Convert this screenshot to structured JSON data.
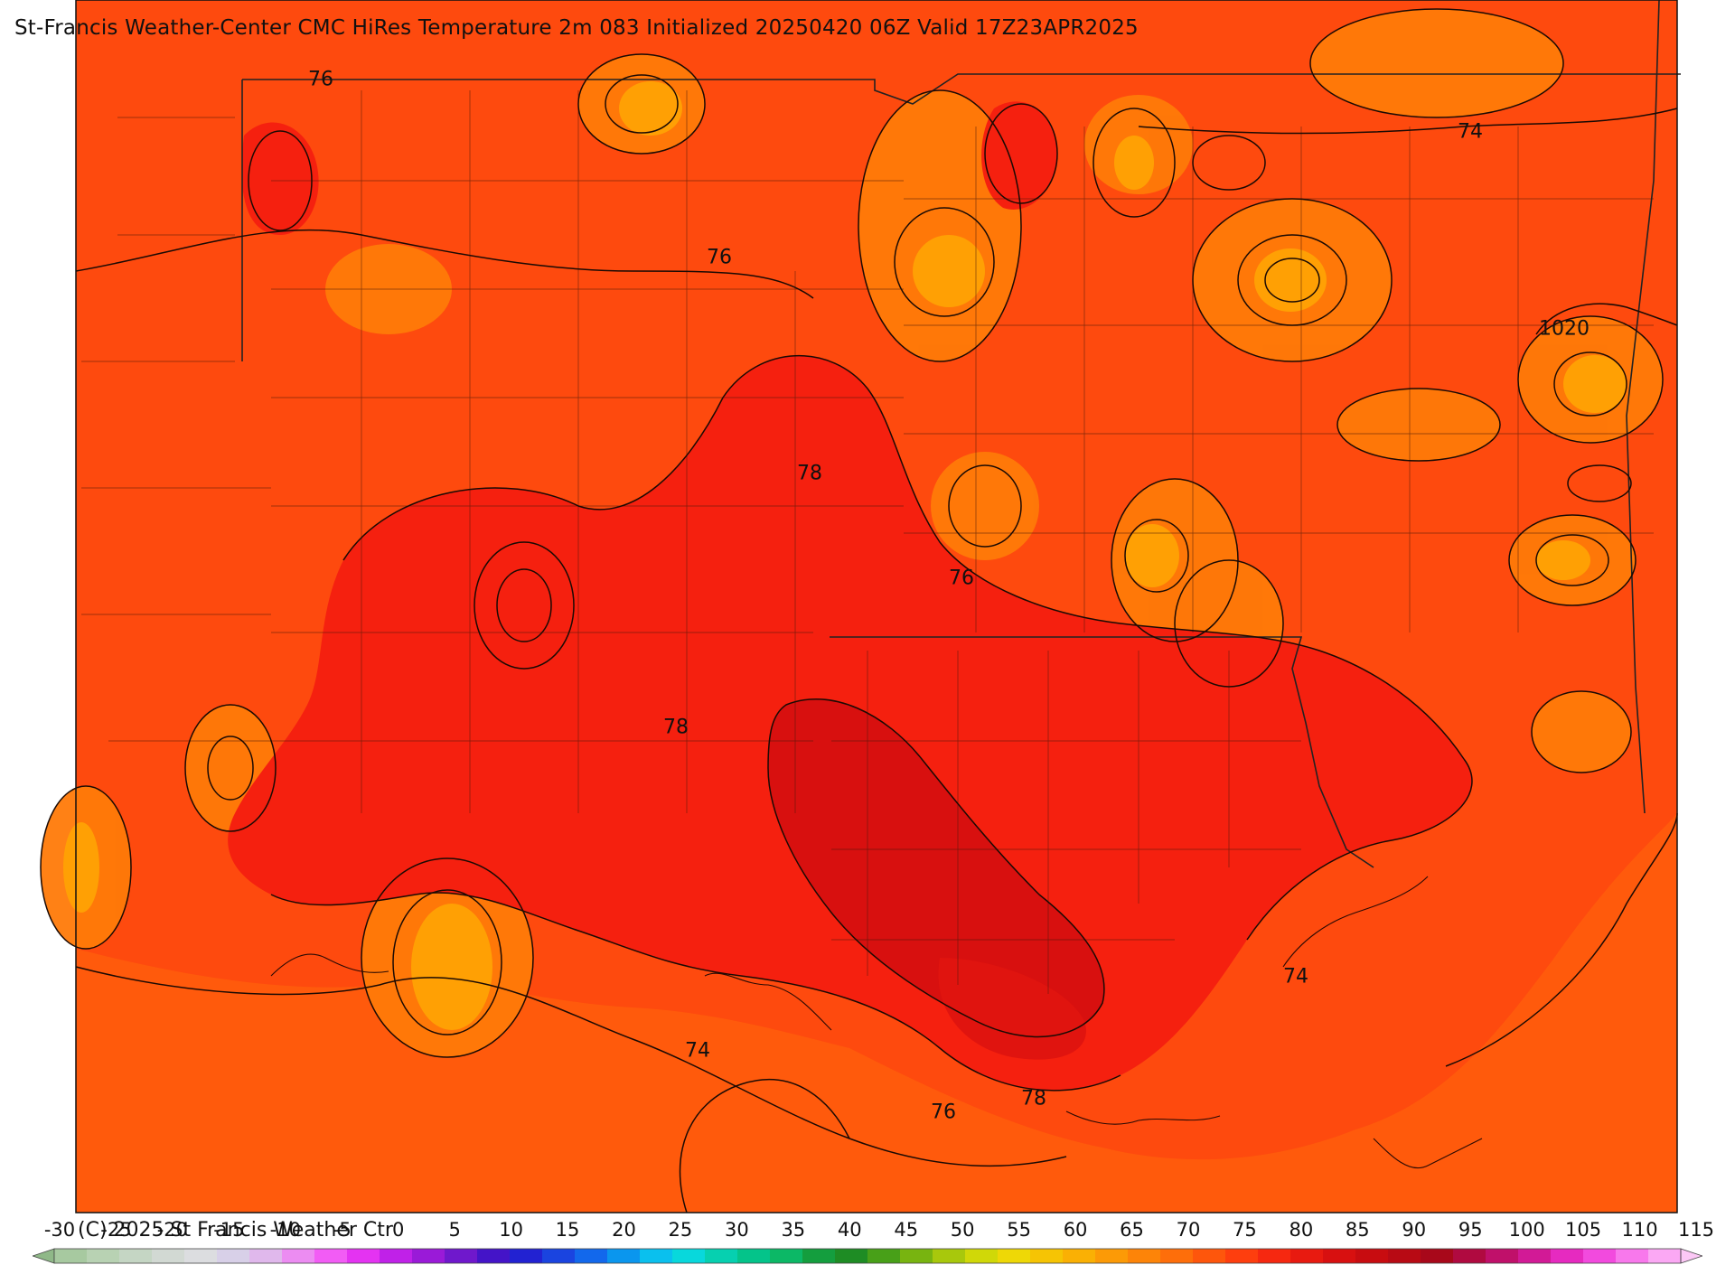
{
  "title": "St-Francis Weather-Center CMC HiRes Temperature 2m  083 Initialized 20250420 06Z Valid 17Z23APR2025",
  "copyright": "(C) 2025 St Francis Weather Ctr",
  "contour_labels": [
    {
      "text": "76"
    },
    {
      "text": "76"
    },
    {
      "text": "74"
    },
    {
      "text": "1020"
    },
    {
      "text": "78"
    },
    {
      "text": "76"
    },
    {
      "text": "78"
    },
    {
      "text": "74"
    },
    {
      "text": "74"
    },
    {
      "text": "76"
    },
    {
      "text": "78"
    }
  ],
  "colorbar": {
    "ticks": [
      "-30",
      "-25",
      "-20",
      "-15",
      "-10",
      "-5",
      "0",
      "5",
      "10",
      "15",
      "20",
      "25",
      "30",
      "35",
      "40",
      "45",
      "50",
      "55",
      "60",
      "65",
      "70",
      "75",
      "80",
      "85",
      "90",
      "95",
      "100",
      "105",
      "110",
      "115"
    ],
    "colors": [
      "#a7c9a0",
      "#b8d2b3",
      "#c5d6c4",
      "#d2d9d3",
      "#dcdde0",
      "#d8d0e8",
      "#e0b8ec",
      "#ec8cf2",
      "#f25cf5",
      "#e433f2",
      "#c021e8",
      "#9a1ad8",
      "#6f18cc",
      "#4414c8",
      "#2222d2",
      "#1a44e0",
      "#1268ec",
      "#0a96ee",
      "#0ac0ee",
      "#08d8dc",
      "#06d0b0",
      "#04c48a",
      "#0cb866",
      "#149e3e",
      "#1e8c24",
      "#48a018",
      "#78b410",
      "#a8c80c",
      "#d0d808",
      "#eed806",
      "#f6c404",
      "#fab004",
      "#fc9a06",
      "#fd8408",
      "#fe6e0a",
      "#fe560c",
      "#fe3e0e",
      "#f62810",
      "#e81a10",
      "#d81010",
      "#c80c10",
      "#b80a14",
      "#a8081a",
      "#b00a40",
      "#c0106a",
      "#d21a96",
      "#e62ac0",
      "#f24ade",
      "#f878ec",
      "#fba8f4"
    ]
  },
  "palette": {
    "ocean": "#ff5a0c",
    "land_base": "#fe4a0e",
    "warm_red": "#f5200f",
    "hot_red": "#d8100f",
    "cool_orange": "#ff7a08",
    "coolest_orange": "#ffa004"
  }
}
